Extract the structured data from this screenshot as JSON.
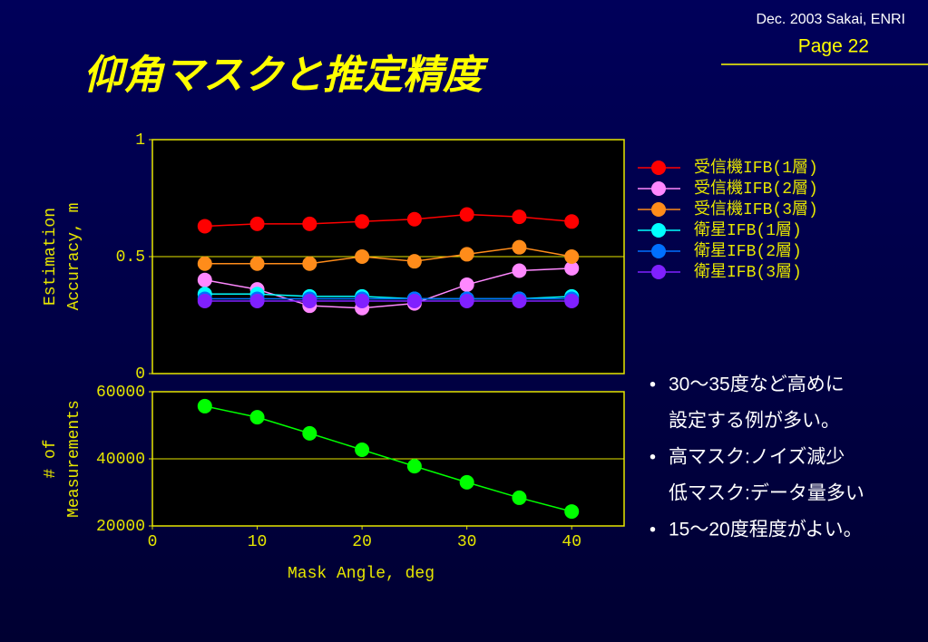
{
  "header": {
    "date": "Dec. 2003 Sakai, ENRI",
    "page": "Page 22"
  },
  "title": "仰角マスクと推定精度",
  "chart_data": [
    {
      "type": "line",
      "x": [
        5,
        10,
        15,
        20,
        25,
        30,
        35,
        40
      ],
      "xlim": [
        0,
        45
      ],
      "ylim": [
        0,
        1
      ],
      "yticks": [
        0,
        0.5,
        1
      ],
      "grid": true,
      "ylabel": [
        "Estimation",
        "Accuracy, m"
      ],
      "series": [
        {
          "name": "受信機IFB(1層)",
          "color": "#ff0000",
          "values": [
            0.63,
            0.64,
            0.64,
            0.65,
            0.66,
            0.68,
            0.67,
            0.65
          ]
        },
        {
          "name": "受信機IFB(2層)",
          "color": "#ff88ff",
          "values": [
            0.4,
            0.36,
            0.29,
            0.28,
            0.3,
            0.38,
            0.44,
            0.45
          ]
        },
        {
          "name": "受信機IFB(3層)",
          "color": "#ff8c1a",
          "values": [
            0.47,
            0.47,
            0.47,
            0.5,
            0.48,
            0.51,
            0.54,
            0.5
          ]
        },
        {
          "name": "衛星IFB(1層)",
          "color": "#00ffff",
          "values": [
            0.34,
            0.34,
            0.33,
            0.33,
            0.32,
            0.32,
            0.32,
            0.33
          ]
        },
        {
          "name": "衛星IFB(2層)",
          "color": "#0070ff",
          "values": [
            0.32,
            0.32,
            0.32,
            0.32,
            0.32,
            0.32,
            0.32,
            0.32
          ]
        },
        {
          "name": "衛星IFB(3層)",
          "color": "#8020ff",
          "values": [
            0.31,
            0.31,
            0.31,
            0.31,
            0.31,
            0.31,
            0.31,
            0.31
          ]
        }
      ]
    },
    {
      "type": "line",
      "x": [
        5,
        10,
        15,
        20,
        25,
        30,
        35,
        40
      ],
      "xlim": [
        0,
        45
      ],
      "xticks": [
        0,
        10,
        20,
        30,
        40
      ],
      "ylim": [
        20000,
        60000
      ],
      "yticks": [
        20000,
        40000,
        60000
      ],
      "grid": true,
      "ylabel": [
        "# of",
        "Measurements"
      ],
      "xlabel": "Mask Angle, deg",
      "series": [
        {
          "color": "#00ff00",
          "values": [
            55700,
            52400,
            47600,
            42700,
            37800,
            33000,
            28400,
            24300
          ]
        }
      ]
    }
  ],
  "bullets": [
    [
      "30〜35度など高めに",
      "設定する例が多い。"
    ],
    [
      "高マスク:ノイズ減少",
      "低マスク:データ量多い"
    ],
    [
      "15〜20度程度がよい。"
    ]
  ]
}
